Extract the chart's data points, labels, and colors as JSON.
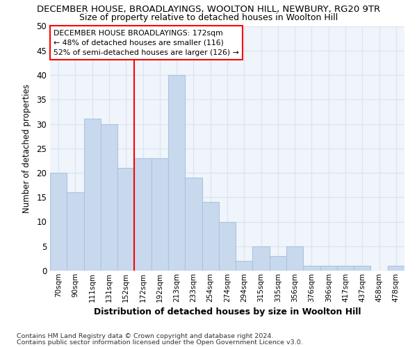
{
  "title": "DECEMBER HOUSE, BROADLAYINGS, WOOLTON HILL, NEWBURY, RG20 9TR",
  "subtitle": "Size of property relative to detached houses in Woolton Hill",
  "xlabel": "Distribution of detached houses by size in Woolton Hill",
  "ylabel": "Number of detached properties",
  "categories": [
    "70sqm",
    "90sqm",
    "111sqm",
    "131sqm",
    "152sqm",
    "172sqm",
    "192sqm",
    "213sqm",
    "233sqm",
    "254sqm",
    "274sqm",
    "294sqm",
    "315sqm",
    "335sqm",
    "356sqm",
    "376sqm",
    "396sqm",
    "417sqm",
    "437sqm",
    "458sqm",
    "478sqm"
  ],
  "values": [
    20,
    16,
    31,
    30,
    21,
    23,
    23,
    40,
    19,
    14,
    10,
    2,
    5,
    3,
    5,
    1,
    1,
    1,
    1,
    0,
    1
  ],
  "bar_color": "#c8d9ee",
  "bar_edge_color": "#aac4e0",
  "red_line_index": 5,
  "ylim": [
    0,
    50
  ],
  "yticks": [
    0,
    5,
    10,
    15,
    20,
    25,
    30,
    35,
    40,
    45,
    50
  ],
  "annotation_text": "DECEMBER HOUSE BROADLAYINGS: 172sqm\n← 48% of detached houses are smaller (116)\n52% of semi-detached houses are larger (126) →",
  "footnote1": "Contains HM Land Registry data © Crown copyright and database right 2024.",
  "footnote2": "Contains public sector information licensed under the Open Government Licence v3.0.",
  "bg_color": "#ffffff",
  "plot_bg_color": "#f0f4fb",
  "grid_color": "#d8e4f0",
  "title_fontsize": 9.5,
  "subtitle_fontsize": 9
}
